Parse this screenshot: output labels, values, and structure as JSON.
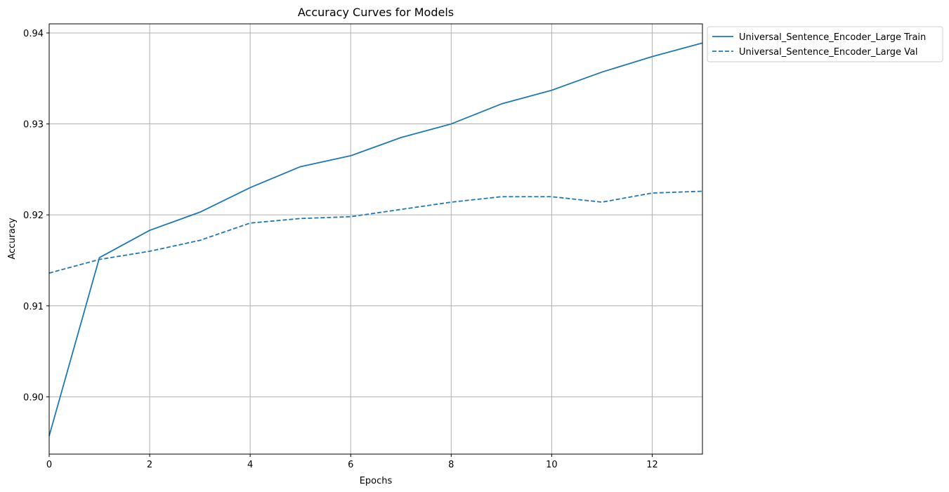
{
  "colors": {
    "series": "#1f77b4",
    "grid": "#b0b0b0",
    "axis": "#000000",
    "legend_border": "#cccccc",
    "background": "#ffffff"
  },
  "chart_data": {
    "type": "line",
    "title": "Accuracy Curves for Models",
    "xlabel": "Epochs",
    "ylabel": "Accuracy",
    "xlim": [
      0,
      13
    ],
    "ylim": [
      0.8937,
      0.941
    ],
    "xticks": [
      0,
      2,
      4,
      6,
      8,
      10,
      12
    ],
    "xtick_labels": [
      "0",
      "2",
      "4",
      "6",
      "8",
      "10",
      "12"
    ],
    "yticks": [
      0.9,
      0.91,
      0.92,
      0.93,
      0.94
    ],
    "ytick_labels": [
      "0.90",
      "0.91",
      "0.92",
      "0.93",
      "0.94"
    ],
    "grid": true,
    "legend_position": "outside top-right",
    "x": [
      0,
      1,
      2,
      3,
      4,
      5,
      6,
      7,
      8,
      9,
      10,
      11,
      12,
      13
    ],
    "series": [
      {
        "name": "Universal_Sentence_Encoder_Large Train",
        "line_style": "solid",
        "values": [
          0.8957,
          0.9153,
          0.9183,
          0.9203,
          0.923,
          0.9253,
          0.9265,
          0.9285,
          0.93,
          0.9322,
          0.9337,
          0.9357,
          0.9374,
          0.9389
        ]
      },
      {
        "name": "Universal_Sentence_Encoder_Large Val",
        "line_style": "dashed",
        "values": [
          0.9136,
          0.9151,
          0.916,
          0.9172,
          0.9191,
          0.9196,
          0.9198,
          0.9206,
          0.9214,
          0.922,
          0.922,
          0.9214,
          0.9224,
          0.9226
        ]
      }
    ]
  }
}
